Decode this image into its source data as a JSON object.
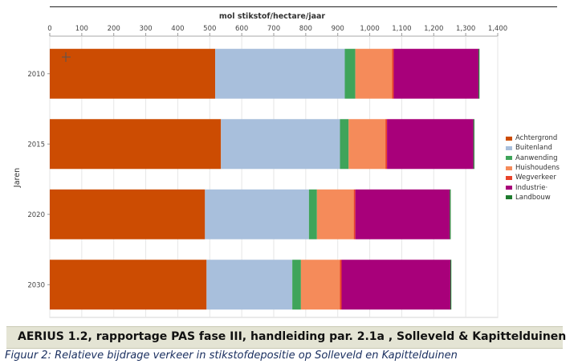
{
  "chart_data": {
    "type": "bar",
    "orientation": "horizontal",
    "stacked": true,
    "xlabel": "mol stikstof/hectare/jaar",
    "ylabel": "Jaren",
    "xlim": [
      0,
      1400
    ],
    "xticks": [
      "0",
      "100",
      "200",
      "300",
      "400",
      "500",
      "600",
      "700",
      "800",
      "900",
      "1,000",
      "1,100",
      "1,200",
      "1,300",
      "1,400"
    ],
    "categories": [
      "2010",
      "2015",
      "2020",
      "2030"
    ],
    "series": [
      {
        "name": "Achtergrond",
        "color": "#cc4c02",
        "values": [
          517,
          535,
          485,
          490
        ]
      },
      {
        "name": "Buitenland",
        "color": "#a8bfdc",
        "values": [
          405,
          372,
          325,
          268
        ]
      },
      {
        "name": "Aanwending",
        "color": "#3fa45a",
        "values": [
          33,
          27,
          25,
          27
        ]
      },
      {
        "name": "Huishoudens",
        "color": "#f58b5a",
        "values": [
          115,
          115,
          115,
          122
        ]
      },
      {
        "name": "Wegverkeer",
        "color": "#e8432a",
        "values": [
          5,
          5,
          5,
          5
        ]
      },
      {
        "name": "Industrie·",
        "color": "#a8007a",
        "values": [
          265,
          270,
          295,
          340
        ]
      },
      {
        "name": "Landbouw",
        "color": "#1e7a2e",
        "values": [
          3,
          3,
          3,
          3
        ]
      }
    ],
    "legend_position": "right",
    "grid": "vertical"
  },
  "footer": "AERIUS 1.2, rapportage PAS fase III, handleiding par. 2.1a , Solleveld & Kapittelduinen",
  "caption": "Figuur 2: Relatieve bijdrage verkeer in stikstofdepositie op Solleveld en Kapittelduinen"
}
